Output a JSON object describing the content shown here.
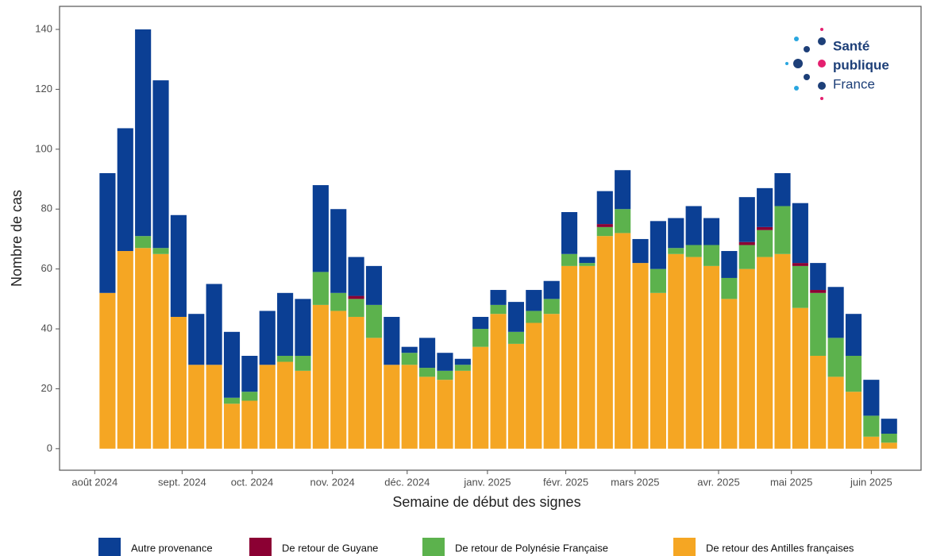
{
  "logo": [
    "Santé",
    "publique",
    "France"
  ],
  "chart_data": {
    "type": "stacked_bar",
    "x_label": "Semaine de début des signes",
    "y_label": "Nombre de cas",
    "categories": [
      null,
      null,
      null,
      null,
      null,
      null,
      null,
      null,
      null,
      null,
      null,
      null,
      null,
      null,
      null,
      null,
      null,
      null,
      null,
      null,
      null,
      null,
      null,
      null,
      null,
      null,
      null,
      null,
      null,
      null,
      null,
      null,
      null,
      null,
      null,
      null,
      null,
      null,
      null,
      null,
      null,
      null,
      null,
      null,
      null
    ],
    "xlim": [
      -2.7,
      45.8
    ],
    "xticks": [
      {
        "value": -0.72,
        "label": "août 2024"
      },
      {
        "value": 4.2,
        "label": "sept. 2024"
      },
      {
        "value": 8.14,
        "label": "oct. 2024"
      },
      {
        "value": 12.66,
        "label": "nov. 2024"
      },
      {
        "value": 16.87,
        "label": "déc. 2024"
      },
      {
        "value": 21.39,
        "label": "janv. 2025"
      },
      {
        "value": 25.8,
        "label": "févr. 2025"
      },
      {
        "value": 29.7,
        "label": "mars 2025"
      },
      {
        "value": 34.4,
        "label": "avr. 2025"
      },
      {
        "value": 38.5,
        "label": "mai 2025"
      },
      {
        "value": 43.0,
        "label": "juin 2025"
      }
    ],
    "ylim": [
      -7.2,
      147.7
    ],
    "yticks": [
      0,
      20,
      40,
      60,
      80,
      100,
      120,
      140
    ],
    "grid": false,
    "legend_position": "bottom",
    "series": [
      {
        "name": "Autre provenance",
        "color": "#0b3f94",
        "values": [
          40,
          41,
          69,
          56,
          34,
          17,
          27,
          22,
          12,
          18,
          21,
          19,
          29,
          28,
          13,
          13,
          16,
          2,
          10,
          6,
          2,
          4,
          5,
          10,
          7,
          6,
          14,
          2,
          11,
          13,
          8,
          16,
          10,
          13,
          9,
          9,
          15,
          13,
          11,
          20,
          9,
          17,
          14,
          12,
          5
        ]
      },
      {
        "name": "De retour de Guyane",
        "color": "#8b0033",
        "values": [
          0,
          0,
          0,
          0,
          0,
          0,
          0,
          0,
          0,
          0,
          0,
          0,
          0,
          0,
          1,
          0,
          0,
          0,
          0,
          0,
          0,
          0,
          0,
          0,
          0,
          0,
          0,
          0,
          1,
          0,
          0,
          0,
          0,
          0,
          0,
          0,
          1,
          1,
          0,
          1,
          1,
          0,
          0,
          0,
          0
        ]
      },
      {
        "name": "De retour de Polynésie Française",
        "color": "#5cb24d",
        "values": [
          0,
          0,
          4,
          2,
          0,
          0,
          0,
          2,
          3,
          0,
          2,
          5,
          11,
          6,
          6,
          11,
          0,
          4,
          3,
          3,
          2,
          6,
          3,
          4,
          4,
          5,
          4,
          1,
          3,
          8,
          0,
          8,
          2,
          4,
          7,
          7,
          8,
          9,
          16,
          14,
          21,
          13,
          12,
          7,
          3
        ]
      },
      {
        "name": "De retour des Antilles françaises",
        "color": "#f5a623",
        "values": [
          52,
          66,
          67,
          65,
          44,
          28,
          28,
          15,
          16,
          28,
          29,
          26,
          48,
          46,
          44,
          37,
          28,
          28,
          24,
          23,
          26,
          34,
          45,
          35,
          42,
          45,
          61,
          61,
          71,
          72,
          62,
          52,
          65,
          64,
          61,
          50,
          60,
          64,
          65,
          47,
          31,
          24,
          19,
          4,
          2
        ]
      }
    ]
  }
}
